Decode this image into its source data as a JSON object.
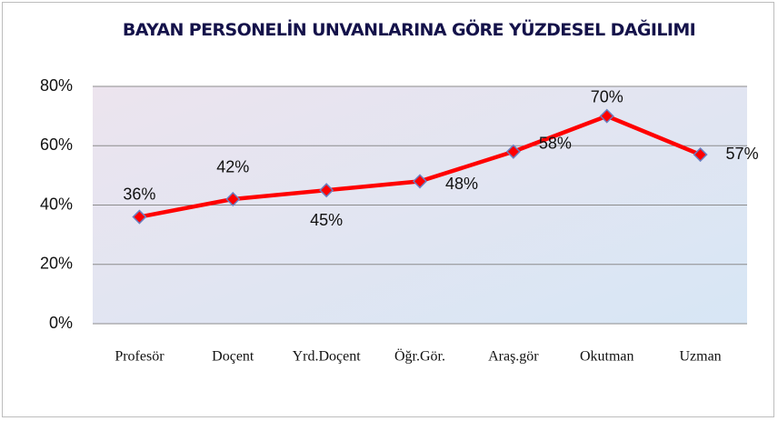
{
  "chart_data": {
    "type": "line",
    "title": "BAYAN PERSONELİN UNVANLARINA GÖRE YÜZDESEL DAĞILIMI",
    "categories": [
      "Profesör",
      "Doçent",
      "Yrd.Doçent",
      "Öğr.Gör.",
      "Araş.gör",
      "Okutman",
      "Uzman"
    ],
    "values": [
      36,
      42,
      45,
      48,
      58,
      70,
      57
    ],
    "value_labels": [
      "36%",
      "42%",
      "45%",
      "48%",
      "58%",
      "70%",
      "57%"
    ],
    "color": "#ff0000",
    "ylim": [
      0,
      80
    ],
    "yticks": [
      {
        "value": 0,
        "label": "0%"
      },
      {
        "value": 20,
        "label": "20%"
      },
      {
        "value": 40,
        "label": "40%"
      },
      {
        "value": 60,
        "label": "60%"
      },
      {
        "value": 80,
        "label": "80%"
      }
    ],
    "grid": true
  }
}
